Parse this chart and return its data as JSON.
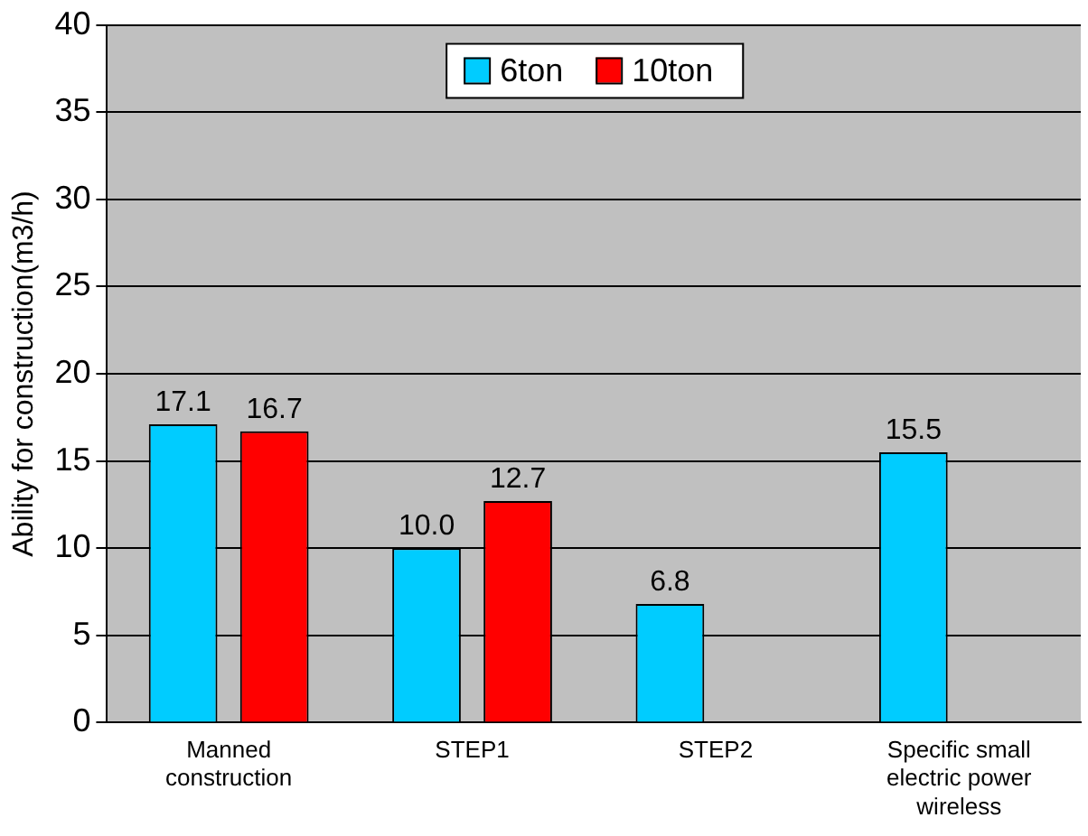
{
  "chart_data": {
    "type": "bar",
    "ylabel": "Ability for construction(m3/h)",
    "categories": [
      "Manned construction",
      "STEP1",
      "STEP2",
      "Specific small electric power wireless"
    ],
    "series": [
      {
        "name": "6ton",
        "color": "#00ccff",
        "values": [
          17.1,
          10.0,
          6.8,
          15.5
        ],
        "value_labels": [
          "17.1",
          "10.0",
          "6.8",
          "15.5"
        ]
      },
      {
        "name": "10ton",
        "color": "#ff0000",
        "values": [
          16.7,
          12.7,
          null,
          null
        ],
        "value_labels": [
          "16.7",
          "12.7",
          null,
          null
        ]
      }
    ],
    "ylim": [
      0,
      40
    ],
    "yticks": [
      0,
      5,
      10,
      15,
      20,
      25,
      30,
      35,
      40
    ],
    "grid": "y",
    "legend": "top"
  }
}
